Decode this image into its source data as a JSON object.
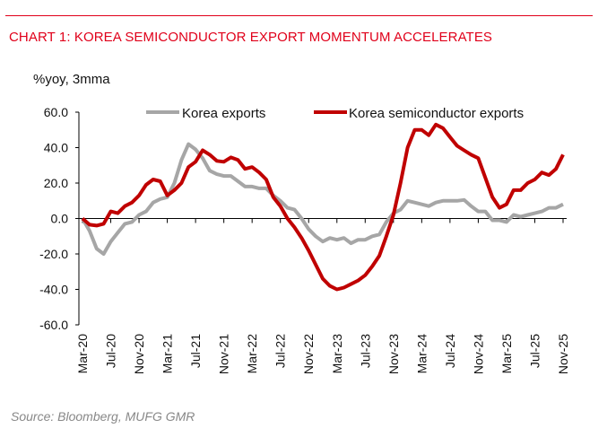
{
  "chart_data": {
    "type": "line",
    "title": "CHART 1: KOREA SEMICONDUCTOR EXPORT MOMENTUM ACCELERATES",
    "ylabel": "%yoy, 3mma",
    "source": "Source: Bloomberg, MUFG GMR",
    "ylim": [
      -60,
      60
    ],
    "yticks": [
      "60.0",
      "40.0",
      "20.0",
      "0.0",
      "-20.0",
      "-40.0",
      "-60.0"
    ],
    "xtick_labels": [
      "Mar-20",
      "Jul-20",
      "Nov-20",
      "Mar-21",
      "Jul-21",
      "Nov-21",
      "Mar-22",
      "Jul-22",
      "Nov-22",
      "Mar-23",
      "Jul-23",
      "Nov-23",
      "Mar-24",
      "Jul-24",
      "Nov-24",
      "Mar-25",
      "Jul-25",
      "Nov-25"
    ],
    "x_start": "Mar-20",
    "x_end": "Nov-25",
    "frequency": "monthly",
    "legend_position": "top",
    "grid": false,
    "series": [
      {
        "name": "Korea exports",
        "color": "#a6a6a6",
        "values": [
          0,
          -7,
          -17,
          -20,
          -13,
          -8,
          -3,
          -2,
          2,
          4,
          9,
          11,
          12,
          20,
          33,
          42,
          39,
          34,
          27,
          25,
          24,
          24,
          21,
          18,
          18,
          17,
          17,
          13,
          10,
          6,
          5,
          0,
          -6,
          -10,
          -13,
          -11,
          -12,
          -11,
          -14,
          -12,
          -12,
          -10,
          -9,
          -2,
          3,
          5,
          10,
          9,
          8,
          7,
          9,
          10,
          10,
          10,
          10.5,
          7,
          4,
          4,
          -1,
          -1,
          -2,
          2,
          1,
          2,
          3,
          4,
          6,
          6,
          8
        ]
      },
      {
        "name": "Korea semiconductor exports",
        "color": "#c00000",
        "values": [
          0,
          -3.5,
          -4,
          -3,
          4,
          3,
          7,
          9,
          13,
          19,
          22,
          21,
          13,
          16,
          20,
          29,
          32,
          38.5,
          36,
          32.5,
          32,
          34.5,
          33,
          28,
          29,
          26,
          22,
          12,
          7,
          0,
          -5,
          -11,
          -18,
          -26,
          -34,
          -38,
          -40,
          -39,
          -37,
          -35,
          -32,
          -27,
          -21,
          -10,
          2,
          20,
          40,
          50,
          50,
          47,
          53,
          51,
          46,
          41,
          38.5,
          36,
          34,
          23,
          12,
          6,
          8,
          16,
          16,
          20,
          22,
          26,
          24.5,
          28,
          36
        ]
      }
    ]
  }
}
